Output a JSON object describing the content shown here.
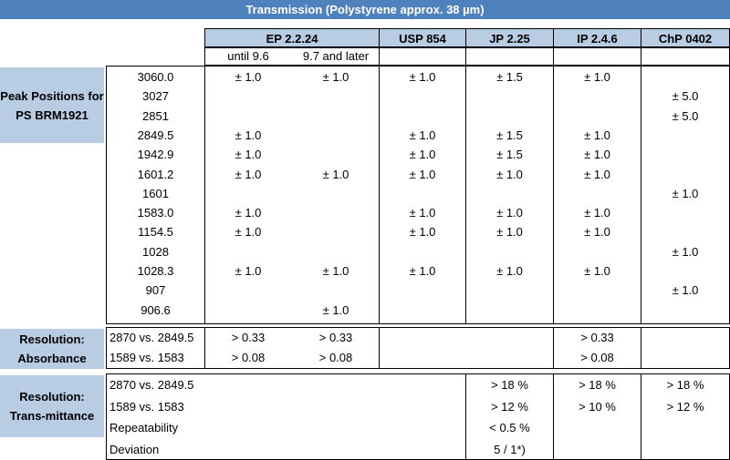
{
  "title": "Transmission (Polystyrene approx. 38 µm)",
  "columns": {
    "ep": "EP 2.2.24",
    "ep_until": "until 9.6",
    "ep_later": "9.7 and later",
    "usp": "USP 854",
    "jp": "JP 2.25",
    "ip": "IP 2.4.6",
    "chp": "ChP 0402"
  },
  "peak": {
    "label": "Peak Positions for PS BRM1921",
    "rows": [
      {
        "pos": "3060.0",
        "ep1": "± 1.0",
        "ep2": "± 1.0",
        "usp": "± 1.0",
        "jp": "± 1.5",
        "ip": "± 1.0",
        "chp": ""
      },
      {
        "pos": "3027",
        "ep1": "",
        "ep2": "",
        "usp": "",
        "jp": "",
        "ip": "",
        "chp": "± 5.0"
      },
      {
        "pos": "2851",
        "ep1": "",
        "ep2": "",
        "usp": "",
        "jp": "",
        "ip": "",
        "chp": "± 5.0"
      },
      {
        "pos": "2849.5",
        "ep1": "± 1.0",
        "ep2": "",
        "usp": "± 1.0",
        "jp": "± 1.5",
        "ip": "± 1.0",
        "chp": ""
      },
      {
        "pos": "1942.9",
        "ep1": "± 1.0",
        "ep2": "",
        "usp": "± 1.0",
        "jp": "± 1.5",
        "ip": "± 1.0",
        "chp": ""
      },
      {
        "pos": "1601.2",
        "ep1": "± 1.0",
        "ep2": "± 1.0",
        "usp": "± 1.0",
        "jp": "± 1.0",
        "ip": "± 1.0",
        "chp": ""
      },
      {
        "pos": "1601",
        "ep1": "",
        "ep2": "",
        "usp": "",
        "jp": "",
        "ip": "",
        "chp": "± 1.0"
      },
      {
        "pos": "1583.0",
        "ep1": "± 1.0",
        "ep2": "",
        "usp": "± 1.0",
        "jp": "± 1.0",
        "ip": "± 1.0",
        "chp": ""
      },
      {
        "pos": "1154.5",
        "ep1": "± 1.0",
        "ep2": "",
        "usp": "± 1.0",
        "jp": "± 1.0",
        "ip": "± 1.0",
        "chp": ""
      },
      {
        "pos": "1028",
        "ep1": "",
        "ep2": "",
        "usp": "",
        "jp": "",
        "ip": "",
        "chp": "± 1.0"
      },
      {
        "pos": "1028.3",
        "ep1": "± 1.0",
        "ep2": "± 1.0",
        "usp": "± 1.0",
        "jp": "± 1.0",
        "ip": "± 1.0",
        "chp": ""
      },
      {
        "pos": "907",
        "ep1": "",
        "ep2": "",
        "usp": "",
        "jp": "",
        "ip": "",
        "chp": "± 1.0"
      },
      {
        "pos": "906.6",
        "ep1": "",
        "ep2": "± 1.0",
        "usp": "",
        "jp": "",
        "ip": "",
        "chp": ""
      }
    ]
  },
  "res_abs": {
    "label": "Resolution: Absorbance",
    "rows": [
      {
        "pos": "2870 vs. 2849.5",
        "ep1": "> 0.33",
        "ep2": "> 0.33",
        "ip": "> 0.33"
      },
      {
        "pos": "1589 vs. 1583",
        "ep1": "> 0.08",
        "ep2": "> 0.08",
        "ip": "> 0.08"
      }
    ]
  },
  "res_trans": {
    "label": "Resolution: Trans-mittance",
    "rows": [
      {
        "pos": "2870 vs. 2849.5",
        "jp": "> 18 %",
        "ip": "> 18 %",
        "chp": "> 18 %"
      },
      {
        "pos": "1589 vs. 1583",
        "jp": "> 12 %",
        "ip": "> 10 %",
        "chp": "> 12 %"
      },
      {
        "pos": "Repeatability",
        "jp": "< 0.5 %",
        "ip": "",
        "chp": ""
      },
      {
        "pos": "Deviation",
        "jp": "5 / 1*)",
        "ip": "",
        "chp": ""
      }
    ]
  }
}
